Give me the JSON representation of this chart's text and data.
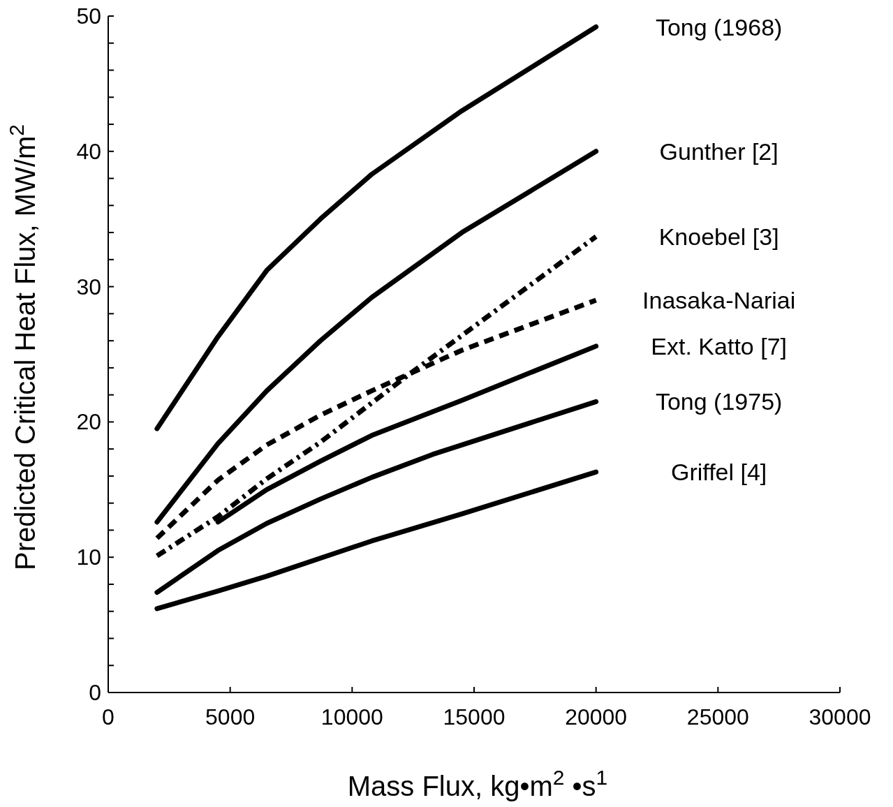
{
  "chart_data": {
    "type": "line",
    "xlabel": "Mass Flux,   kg•m$^{2}$ •s$^{1}$",
    "ylabel": "Predicted Critical Heat Flux,   MW/m$^{2}$",
    "xlim": [
      0,
      30000
    ],
    "xticks": [
      0,
      5000,
      10000,
      15000,
      20000,
      25000,
      30000
    ],
    "ylim": [
      0,
      50
    ],
    "yticks": [
      0,
      {
        "value": 2,
        "label": null
      },
      {
        "value": 4,
        "label": null
      },
      {
        "value": 6,
        "label": null
      },
      {
        "value": 8,
        "label": null
      },
      10,
      {
        "value": 12,
        "label": null
      },
      {
        "value": 14,
        "label": null
      },
      {
        "value": 16,
        "label": null
      },
      {
        "value": 18,
        "label": null
      },
      20,
      {
        "value": 22,
        "label": null
      },
      {
        "value": 24,
        "label": null
      },
      {
        "value": 26,
        "label": null
      },
      {
        "value": 28,
        "label": null
      },
      30,
      {
        "value": 32,
        "label": null
      },
      {
        "value": 34,
        "label": null
      },
      {
        "value": 36,
        "label": null
      },
      {
        "value": 38,
        "label": null
      },
      40,
      {
        "value": 42,
        "label": null
      },
      {
        "value": 44,
        "label": null
      },
      {
        "value": 46,
        "label": null
      },
      {
        "value": 48,
        "label": null
      },
      50
    ],
    "grid": false,
    "legend": false,
    "marker": "none",
    "series": [
      {
        "name": "Tong (1968)",
        "color": "#000000",
        "line_style": "solid",
        "x": [
          2000,
          4500,
          6500,
          8700,
          10800,
          14500,
          20000
        ],
        "values": [
          19.5,
          26.3,
          31.2,
          35,
          38.3,
          43,
          49.2
        ]
      },
      {
        "name": "Gunther  [2]",
        "color": "#000000",
        "line_style": "solid",
        "x": [
          2000,
          4500,
          6500,
          8700,
          10800,
          14500,
          20000
        ],
        "values": [
          12.6,
          18.4,
          22.3,
          26,
          29.2,
          34,
          40
        ]
      },
      {
        "name": "Knoebel   [3]",
        "color": "#000000",
        "line_style": "dashdot",
        "x": [
          2000,
          4500,
          6500,
          8700,
          10800,
          12400,
          20000
        ],
        "values": [
          10.1,
          13,
          15.8,
          18.5,
          21.4,
          23.6,
          33.7
        ]
      },
      {
        "name": "Inasaka-Nariai",
        "color": "#000000",
        "line_style": "dashed",
        "x": [
          2000,
          4500,
          6500,
          8700,
          10800,
          14500,
          20000
        ],
        "values": [
          11.4,
          15.7,
          18.3,
          20.5,
          22.3,
          25.3,
          29
        ]
      },
      {
        "name": "Ext. Katto [7]",
        "color": "#000000",
        "line_style": "solid",
        "x": [
          4500,
          6500,
          8700,
          10800,
          14500,
          20000
        ],
        "values": [
          12.6,
          15,
          17.1,
          19,
          21.6,
          25.6
        ]
      },
      {
        "name": "Tong (1975)",
        "color": "#000000",
        "line_style": "solid",
        "x": [
          2000,
          4500,
          6500,
          8700,
          10800,
          13300,
          20000
        ],
        "values": [
          7.4,
          10.5,
          12.5,
          14.3,
          15.9,
          17.6,
          21.5
        ]
      },
      {
        "name": "Griffel  [4]",
        "color": "#000000",
        "line_style": "solid",
        "x": [
          2000,
          4500,
          6500,
          10800,
          14500,
          20000
        ],
        "values": [
          6.2,
          7.5,
          8.6,
          11.2,
          13.2,
          16.3
        ]
      }
    ]
  }
}
